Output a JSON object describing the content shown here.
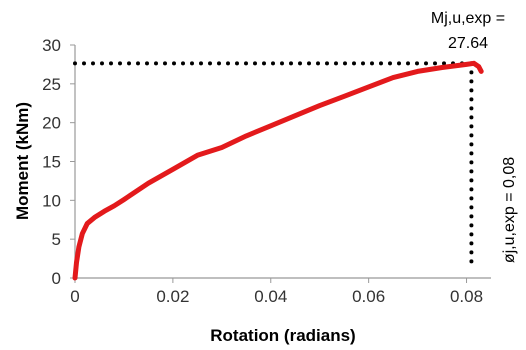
{
  "chart_data": {
    "type": "line",
    "title": "",
    "xlabel": "Rotation (radians)",
    "ylabel": "Moment (kNm)",
    "xlim": [
      0,
      0.085
    ],
    "ylim": [
      0,
      30
    ],
    "x_ticks": [
      "0",
      "0.02",
      "0.04",
      "0.06",
      "0.08"
    ],
    "y_ticks": [
      "0",
      "5",
      "10",
      "15",
      "20",
      "25",
      "30"
    ],
    "grid": false,
    "legend": "none",
    "series": [
      {
        "color": "#e31a1c",
        "points": [
          [
            0,
            0
          ],
          [
            0.0003,
            2
          ],
          [
            0.0008,
            4
          ],
          [
            0.0015,
            5.7
          ],
          [
            0.0025,
            7.0
          ],
          [
            0.004,
            7.8
          ],
          [
            0.006,
            8.6
          ],
          [
            0.008,
            9.3
          ],
          [
            0.01,
            10.1
          ],
          [
            0.015,
            12.2
          ],
          [
            0.02,
            14.0
          ],
          [
            0.025,
            15.8
          ],
          [
            0.03,
            16.8
          ],
          [
            0.035,
            18.3
          ],
          [
            0.04,
            19.6
          ],
          [
            0.045,
            20.9
          ],
          [
            0.05,
            22.2
          ],
          [
            0.055,
            23.4
          ],
          [
            0.06,
            24.6
          ],
          [
            0.065,
            25.8
          ],
          [
            0.07,
            26.6
          ],
          [
            0.075,
            27.1
          ],
          [
            0.08,
            27.5
          ],
          [
            0.0815,
            27.64
          ],
          [
            0.0825,
            27.2
          ],
          [
            0.083,
            26.6
          ]
        ]
      }
    ],
    "annotations": {
      "peak_moment_line1": "Mj,u,exp =",
      "peak_moment_line2": "27.64",
      "peak_rotation": "øj,u,exp = 0,08",
      "peak_moment_value": 27.64,
      "peak_rotation_value": 0.081
    }
  }
}
